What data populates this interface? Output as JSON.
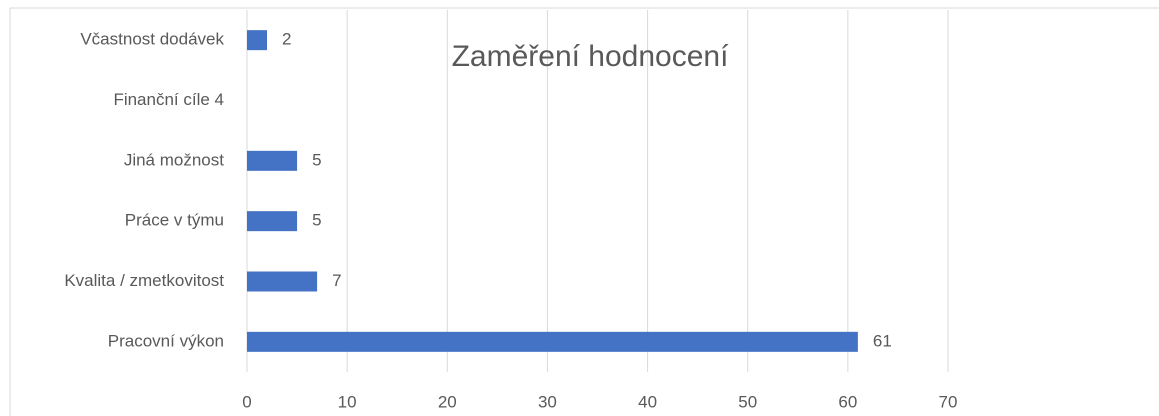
{
  "chart_data": {
    "type": "hbar",
    "title": "Zaměření hodnocení",
    "categories": [
      "Včastnost dodávek",
      "Finanční cíle 4",
      "Jiná možnost",
      "Práce v týmu",
      "Kvalita / zmetkovitost",
      "Pracovní výkon"
    ],
    "values": [
      2,
      null,
      5,
      5,
      7,
      61
    ],
    "color": "#4472c4",
    "xlim": [
      0,
      70
    ],
    "xticks": [
      0,
      10,
      20,
      30,
      40,
      50,
      60,
      70
    ],
    "grid": true
  }
}
